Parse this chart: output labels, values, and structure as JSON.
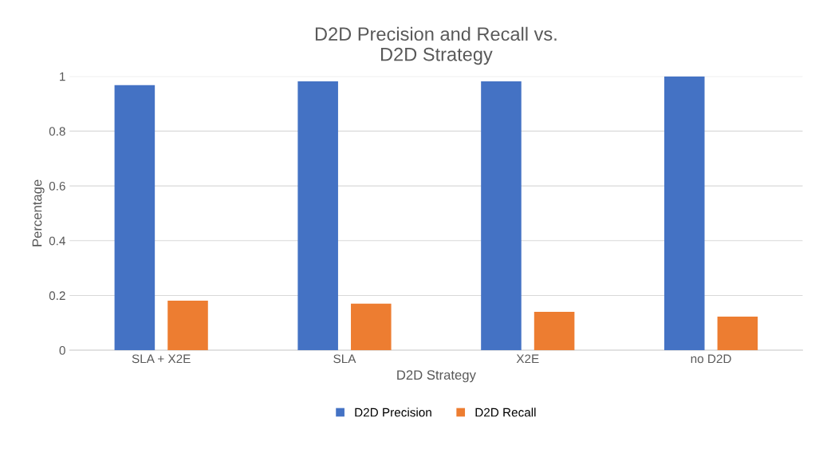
{
  "chart_data": {
    "type": "bar",
    "title": "D2D Precision and Recall vs.\nD2D Strategy",
    "xlabel": "D2D Strategy",
    "ylabel": "Percentage",
    "categories": [
      "SLA + X2E",
      "SLA",
      "X2E",
      "no D2D"
    ],
    "series": [
      {
        "name": "D2D Precision",
        "color": "#4472c4",
        "values": [
          0.968,
          0.982,
          0.982,
          1.0
        ]
      },
      {
        "name": "D2D Recall",
        "color": "#ed7d31",
        "values": [
          0.181,
          0.17,
          0.14,
          0.123
        ]
      }
    ],
    "ylim": [
      0,
      1
    ],
    "yticks": [
      0,
      0.2,
      0.4,
      0.6,
      0.8,
      1
    ],
    "grid": "y",
    "legend": "bottom"
  }
}
